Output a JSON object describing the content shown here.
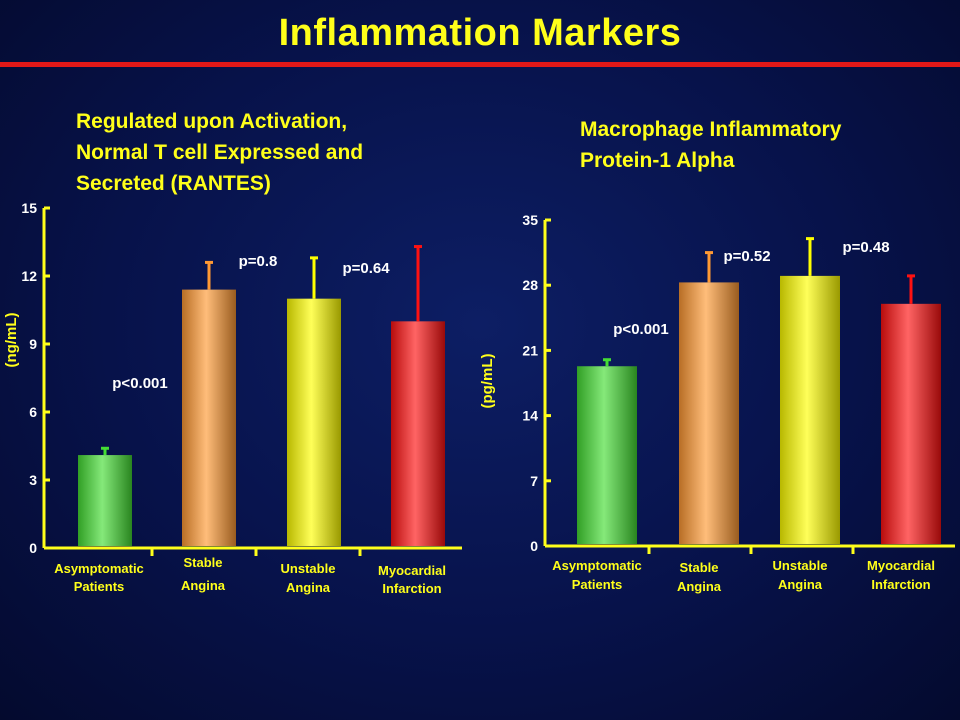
{
  "slide_title": "Inflammation Markers",
  "colors": {
    "title": "#ffff1a",
    "rule": "#e21818",
    "text": "#ffffff",
    "axis": "#ffff1a",
    "series": [
      "#44dd33",
      "#ff9933",
      "#ffff00",
      "#ff1111"
    ]
  },
  "chart_data": [
    {
      "type": "bar",
      "title_lines": [
        "Regulated upon Activation,",
        "Normal T cell Expressed and",
        "Secreted (RANTES)"
      ],
      "ylabel": "(ng/mL)",
      "ylim": [
        0,
        15
      ],
      "yticks": [
        "0",
        "3",
        "6",
        "9",
        "12",
        "15"
      ],
      "categories": [
        [
          "Asymptomatic",
          "Patients"
        ],
        [
          "Stable",
          "Angina"
        ],
        [
          "Unstable",
          "Angina"
        ],
        [
          "Myocardial",
          "Infarction"
        ]
      ],
      "values": [
        4.1,
        11.4,
        11.0,
        10.0
      ],
      "error_upper": [
        4.4,
        12.6,
        12.8,
        13.3
      ],
      "p_values": [
        "p<0.001",
        "p=0.8",
        "p=0.64",
        ""
      ]
    },
    {
      "type": "bar",
      "title_lines": [
        "Macrophage Inflammatory",
        "Protein-1 Alpha"
      ],
      "ylabel": "(pg/mL)",
      "ylim": [
        0,
        35
      ],
      "yticks": [
        "0",
        "7",
        "14",
        "21",
        "28",
        "35"
      ],
      "categories": [
        [
          "Asymptomatic",
          "Patients"
        ],
        [
          "Stable",
          "Angina"
        ],
        [
          "Unstable",
          "Angina"
        ],
        [
          "Myocardial",
          "Infarction"
        ]
      ],
      "values": [
        19.3,
        28.3,
        29.0,
        26.0
      ],
      "error_upper": [
        20.0,
        31.5,
        33.0,
        29.0
      ],
      "p_values": [
        "p<0.001",
        "p=0.52",
        "p=0.48",
        ""
      ]
    }
  ]
}
